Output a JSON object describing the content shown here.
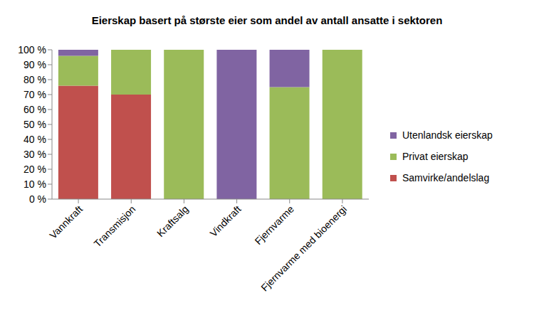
{
  "chart_data": {
    "type": "bar",
    "title": "Eierskap basert på største eier som andel av antall ansatte i sektoren",
    "categories": [
      "Vannkraft",
      "Transmisjon",
      "Kraftsalg",
      "Vindkraft",
      "Fjernvarme",
      "Fjernvarme med bioenergi"
    ],
    "series": [
      {
        "name": "Samvirke/andelslag",
        "color": "#c0504d",
        "values": [
          76,
          70,
          0,
          0,
          0,
          0
        ]
      },
      {
        "name": "Privat eierskap",
        "color": "#9bbb59",
        "values": [
          20,
          30,
          100,
          0,
          75,
          100
        ]
      },
      {
        "name": "Utenlandsk eierskap",
        "color": "#8064a2",
        "values": [
          4,
          0,
          0,
          100,
          25,
          0
        ]
      }
    ],
    "ylim": [
      0,
      100
    ],
    "yticks": [
      {
        "value": 0,
        "label": "0 %"
      },
      {
        "value": 10,
        "label": "10 %"
      },
      {
        "value": 20,
        "label": "20 %"
      },
      {
        "value": 30,
        "label": "30 %"
      },
      {
        "value": 40,
        "label": "40 %"
      },
      {
        "value": 50,
        "label": "50 %"
      },
      {
        "value": 60,
        "label": "60 %"
      },
      {
        "value": 70,
        "label": "70 %"
      },
      {
        "value": 80,
        "label": "80 %"
      },
      {
        "value": 90,
        "label": "90 %"
      },
      {
        "value": 100,
        "label": "100 %"
      }
    ],
    "stacked": true,
    "grid": false,
    "legend": "right"
  }
}
